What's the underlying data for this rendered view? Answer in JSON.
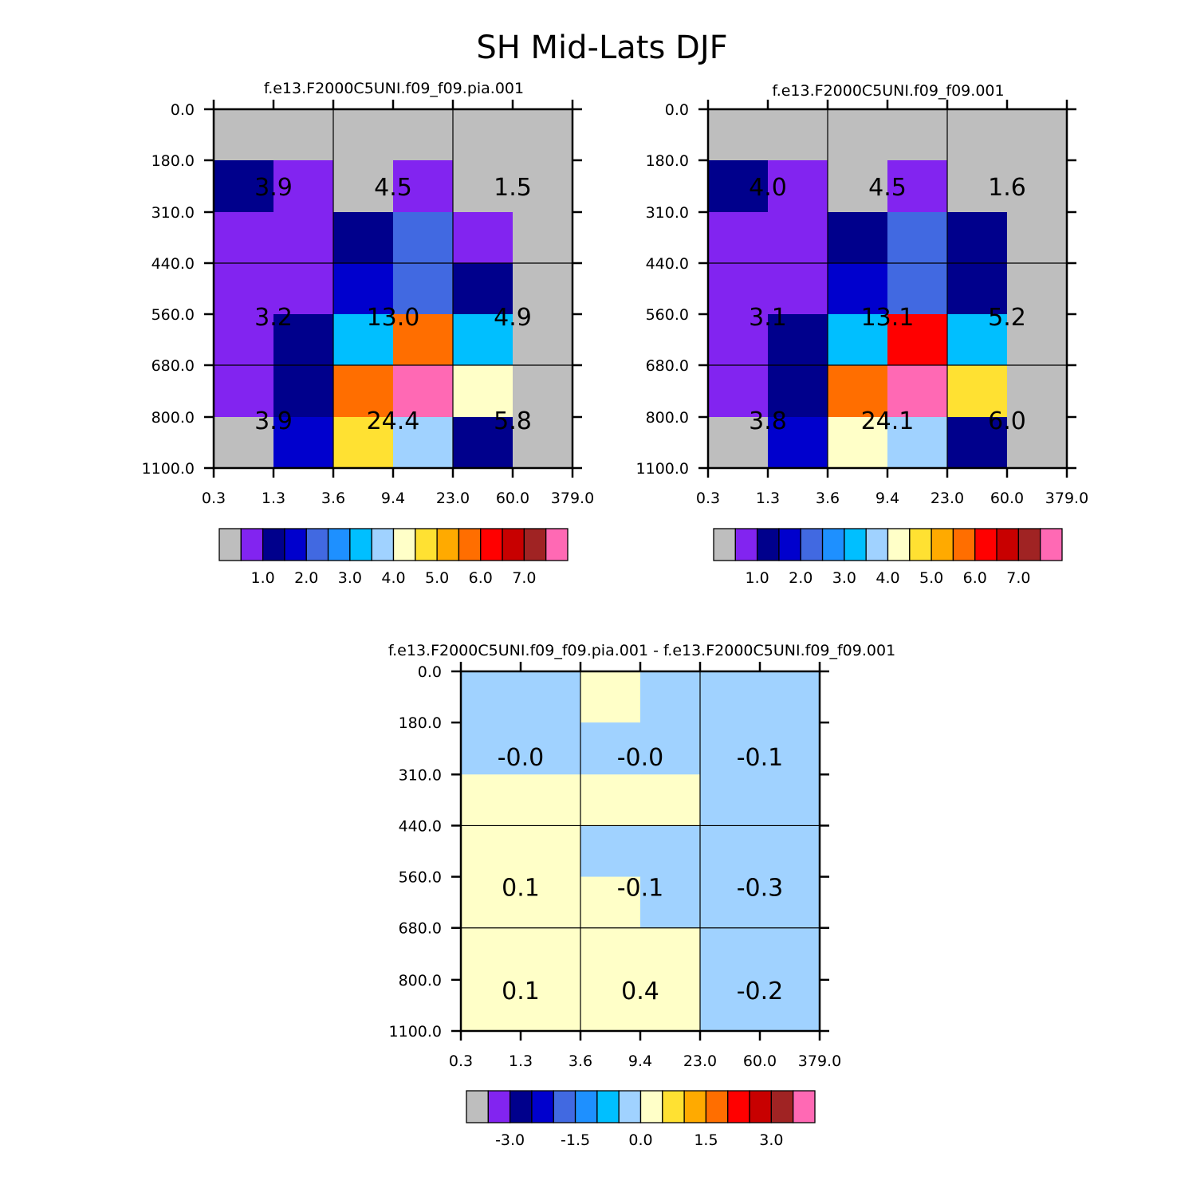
{
  "figure_title": "SH Mid-Lats DJF",
  "colors": {
    "palette": [
      "#bebebe",
      "#8224f0",
      "#00008c",
      "#0000cd",
      "#4169e1",
      "#1e90ff",
      "#00bfff",
      "#a0d2ff",
      "#ffffc8",
      "#ffe132",
      "#ffaa00",
      "#ff6e00",
      "#ff0000",
      "#c80000",
      "#a02323",
      "#ff69b4"
    ]
  },
  "chart_data": [
    {
      "type": "heatmap",
      "title": "f.e13.F2000C5UNI.f09_f09.pia.001",
      "x_tick_labels": [
        "0.3",
        "1.3",
        "3.6",
        "9.4",
        "23.0",
        "60.0",
        "379.0"
      ],
      "y_tick_labels": [
        "0.0",
        "180.0",
        "310.0",
        "440.0",
        "560.0",
        "680.0",
        "800.0",
        "1100.0"
      ],
      "cell_color_index": [
        [
          0,
          0,
          0,
          0,
          0,
          0
        ],
        [
          2,
          1,
          0,
          1,
          0,
          0
        ],
        [
          1,
          1,
          2,
          4,
          1,
          0
        ],
        [
          1,
          1,
          3,
          4,
          2,
          0
        ],
        [
          1,
          2,
          6,
          11,
          6,
          0
        ],
        [
          1,
          2,
          11,
          15,
          8,
          0
        ],
        [
          0,
          3,
          9,
          7,
          2,
          0
        ]
      ],
      "box_values": [
        [
          "3.9",
          "4.5",
          "1.5"
        ],
        [
          "3.2",
          "13.0",
          "4.9"
        ],
        [
          "3.9",
          "24.4",
          "5.8"
        ]
      ],
      "colorbar_labels": [
        "1.0",
        "2.0",
        "3.0",
        "4.0",
        "5.0",
        "6.0",
        "7.0"
      ]
    },
    {
      "type": "heatmap",
      "title": "f.e13.F2000C5UNI.f09_f09.001",
      "x_tick_labels": [
        "0.3",
        "1.3",
        "3.6",
        "9.4",
        "23.0",
        "60.0",
        "379.0"
      ],
      "y_tick_labels": [
        "0.0",
        "180.0",
        "310.0",
        "440.0",
        "560.0",
        "680.0",
        "800.0",
        "1100.0"
      ],
      "cell_color_index": [
        [
          0,
          0,
          0,
          0,
          0,
          0
        ],
        [
          2,
          1,
          0,
          1,
          0,
          0
        ],
        [
          1,
          1,
          2,
          4,
          2,
          0
        ],
        [
          1,
          1,
          3,
          4,
          2,
          0
        ],
        [
          1,
          2,
          6,
          12,
          6,
          0
        ],
        [
          1,
          2,
          11,
          15,
          9,
          0
        ],
        [
          0,
          3,
          8,
          7,
          2,
          0
        ]
      ],
      "box_values": [
        [
          "4.0",
          "4.5",
          "1.6"
        ],
        [
          "3.1",
          "13.1",
          "5.2"
        ],
        [
          "3.8",
          "24.1",
          "6.0"
        ]
      ],
      "colorbar_labels": [
        "1.0",
        "2.0",
        "3.0",
        "4.0",
        "5.0",
        "6.0",
        "7.0"
      ]
    },
    {
      "type": "heatmap",
      "title": "f.e13.F2000C5UNI.f09_f09.pia.001 - f.e13.F2000C5UNI.f09_f09.001",
      "x_tick_labels": [
        "0.3",
        "1.3",
        "3.6",
        "9.4",
        "23.0",
        "60.0",
        "379.0"
      ],
      "y_tick_labels": [
        "0.0",
        "180.0",
        "310.0",
        "440.0",
        "560.0",
        "680.0",
        "800.0",
        "1100.0"
      ],
      "cell_color_index": [
        [
          7,
          7,
          8,
          7,
          7,
          7
        ],
        [
          7,
          7,
          7,
          7,
          7,
          7
        ],
        [
          8,
          8,
          8,
          8,
          7,
          7
        ],
        [
          8,
          8,
          7,
          7,
          7,
          7
        ],
        [
          8,
          8,
          8,
          7,
          7,
          7
        ],
        [
          8,
          8,
          8,
          8,
          7,
          7
        ],
        [
          8,
          8,
          8,
          8,
          7,
          7
        ]
      ],
      "box_values": [
        [
          "-0.0",
          "-0.0",
          "-0.1"
        ],
        [
          "0.1",
          "-0.1",
          "-0.3"
        ],
        [
          "0.1",
          "0.4",
          "-0.2"
        ]
      ],
      "colorbar_labels": [
        "-3.0",
        "-1.5",
        "0.0",
        "1.5",
        "3.0"
      ]
    }
  ]
}
